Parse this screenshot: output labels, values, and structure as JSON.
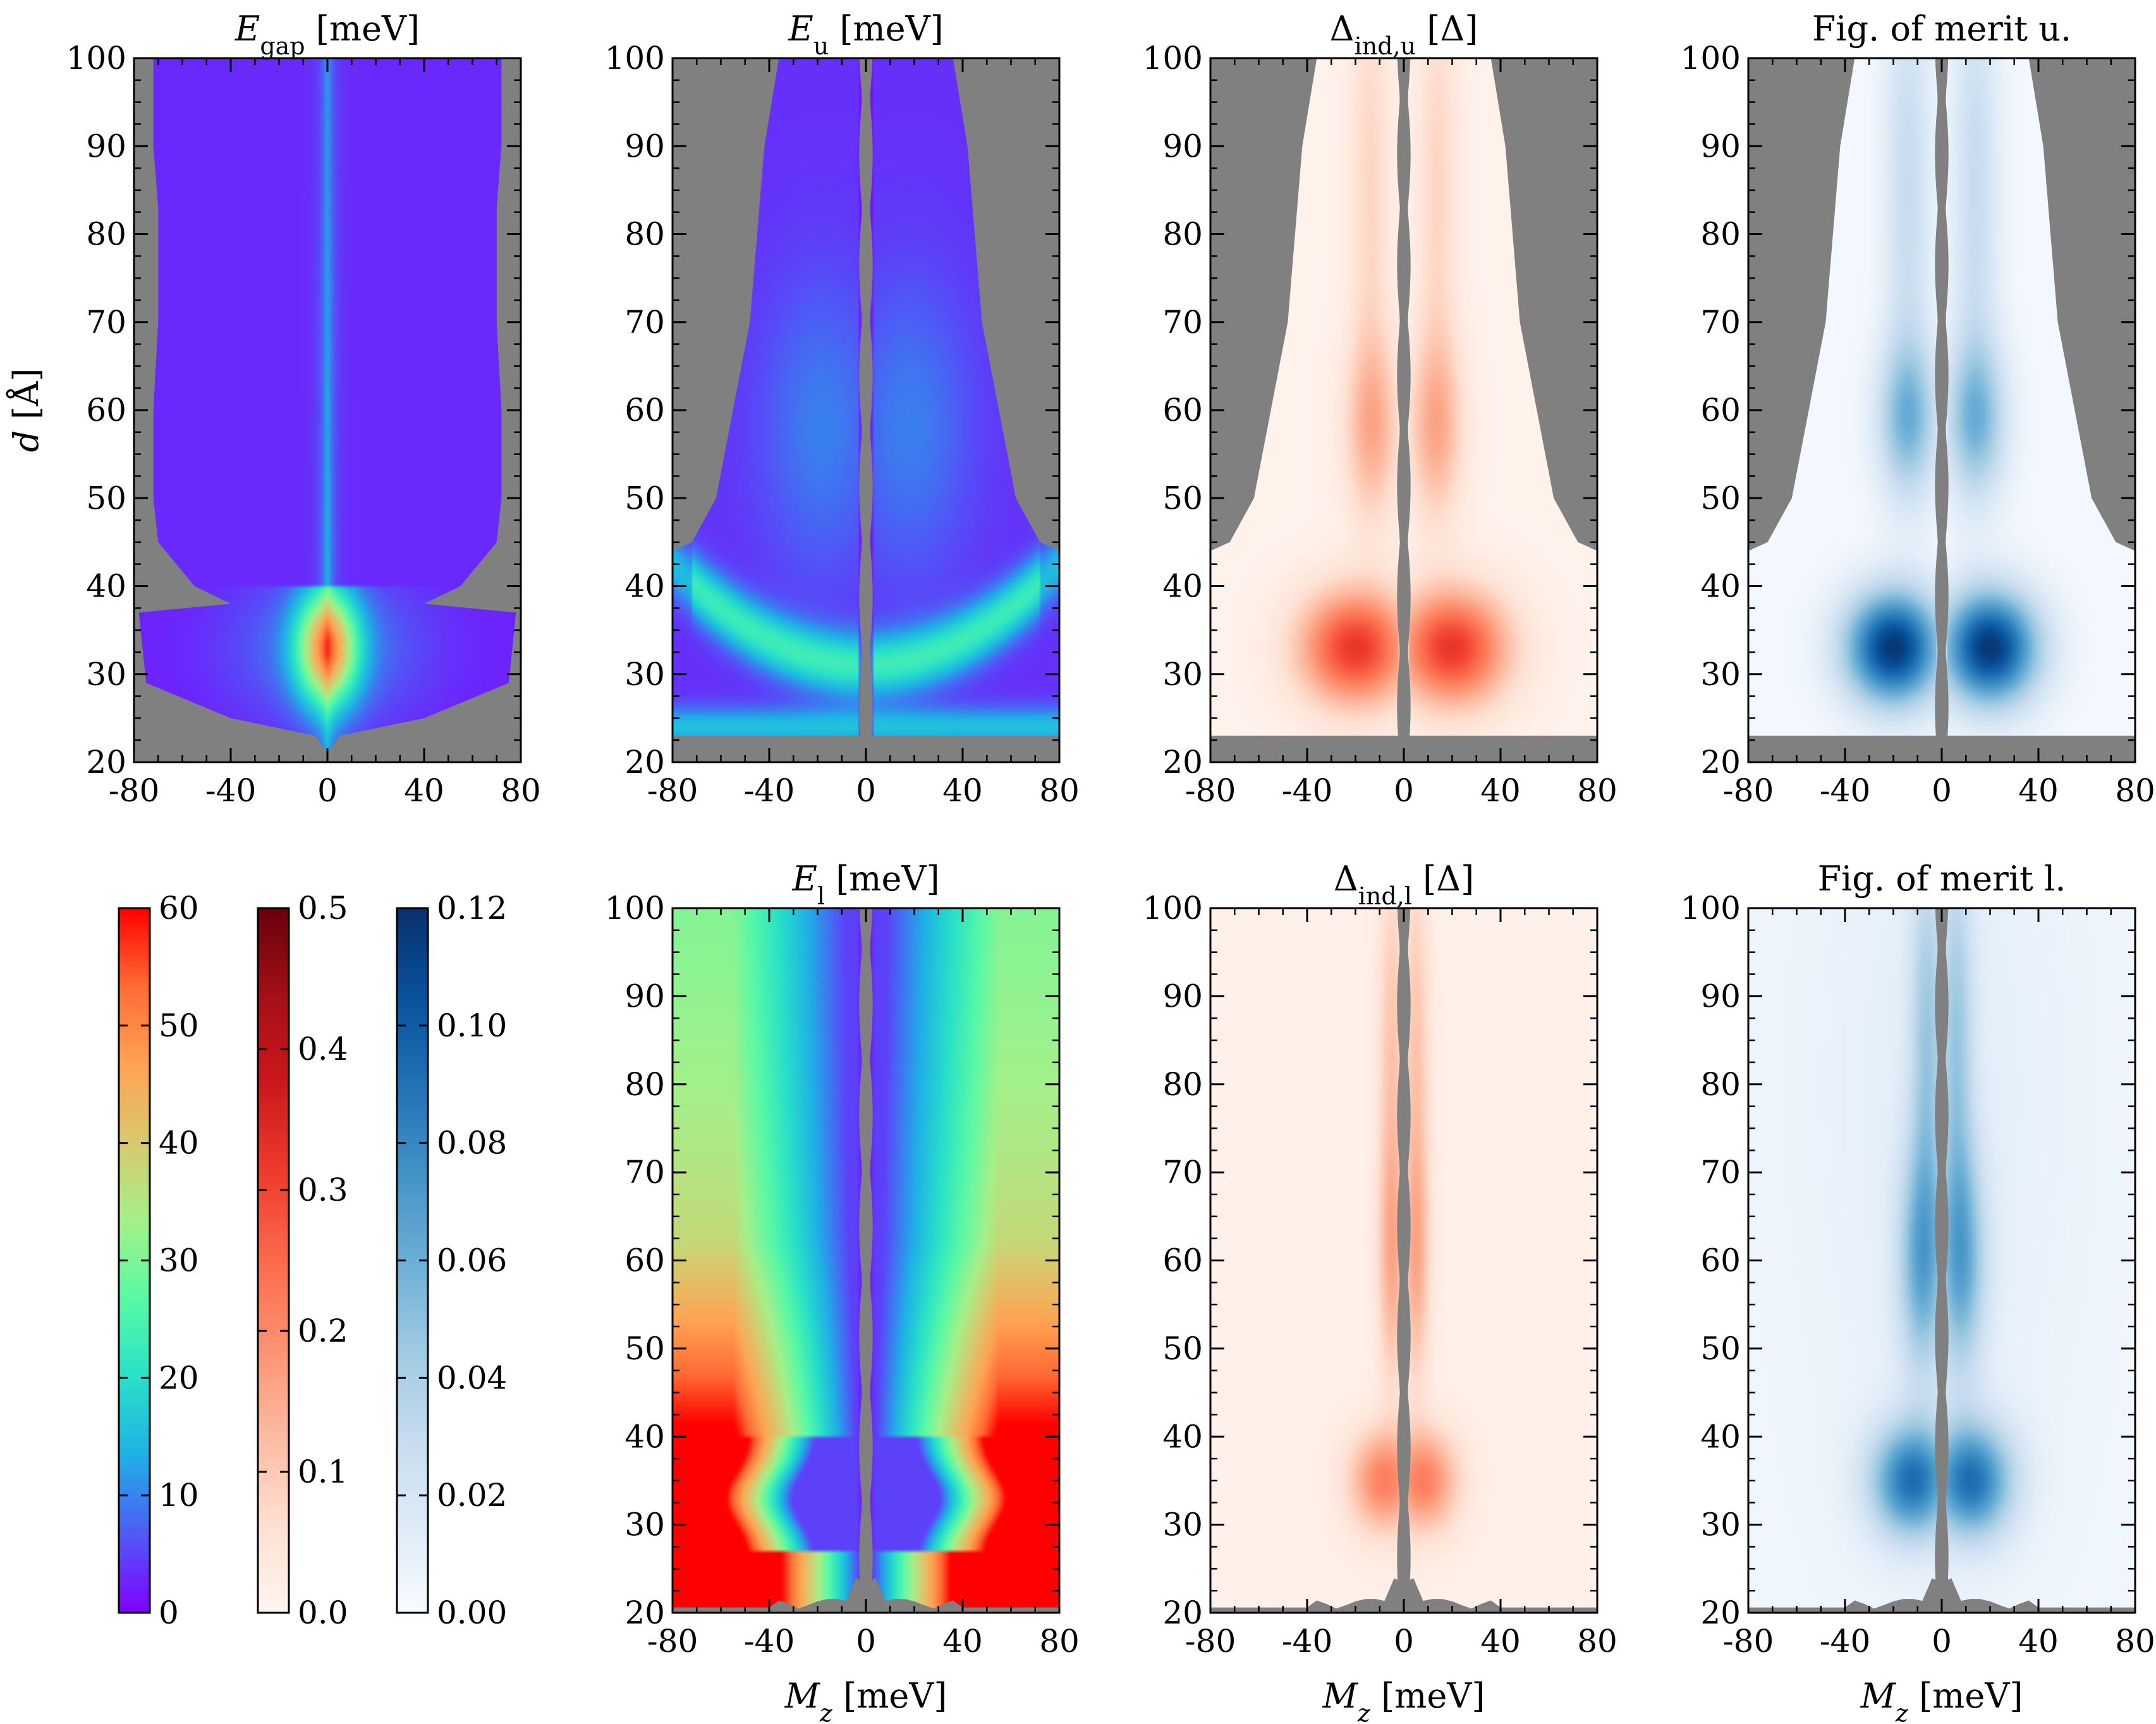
{
  "figure": {
    "background_color": "#ffffff",
    "masked_region_color": "#808080",
    "subtitle_note": ""
  },
  "chart_data": [
    {
      "type": "heatmap",
      "id": "egap",
      "title": "E_gap [meV]",
      "title_main": "E",
      "title_sub": "gap",
      "title_rest": " [meV]",
      "xlabel": "",
      "ylabel": "d [Å]",
      "ylabel_main": "d",
      "ylabel_rest": " [Å]",
      "xlim": [
        -80,
        80
      ],
      "ylim": [
        20,
        100
      ],
      "xticks": [
        -80,
        -40,
        0,
        40,
        80
      ],
      "yticks": [
        20,
        30,
        40,
        50,
        60,
        70,
        80,
        90,
        100
      ],
      "colormap": "rainbow",
      "color_range": [
        0,
        60
      ],
      "peak": {
        "x": 0,
        "y": 33,
        "value": 45
      },
      "valid_region": [
        [
          -72,
          100
        ],
        [
          -72,
          90
        ],
        [
          -70,
          83
        ],
        [
          -70,
          70
        ],
        [
          -72,
          60
        ],
        [
          -72,
          50
        ],
        [
          -70,
          45
        ],
        [
          -55,
          40
        ],
        [
          -40,
          38
        ],
        [
          -78,
          37
        ],
        [
          -75,
          29
        ],
        [
          -40,
          25
        ],
        [
          -5,
          23
        ],
        [
          0,
          21
        ],
        [
          5,
          23
        ],
        [
          40,
          25
        ],
        [
          75,
          29
        ],
        [
          78,
          37
        ],
        [
          40,
          38
        ],
        [
          55,
          40
        ],
        [
          70,
          45
        ],
        [
          72,
          50
        ],
        [
          72,
          60
        ],
        [
          70,
          70
        ],
        [
          70,
          83
        ],
        [
          72,
          90
        ],
        [
          72,
          100
        ]
      ]
    },
    {
      "type": "heatmap",
      "id": "eu",
      "title": "E_u [meV]",
      "title_main": "E",
      "title_sub": "u",
      "title_rest": " [meV]",
      "xlabel": "",
      "ylabel": "",
      "xlim": [
        -80,
        80
      ],
      "ylim": [
        20,
        100
      ],
      "xticks": [
        -80,
        -40,
        0,
        40,
        80
      ],
      "yticks": [
        20,
        30,
        40,
        50,
        60,
        70,
        80,
        90,
        100
      ],
      "colormap": "rainbow",
      "color_range": [
        0,
        60
      ],
      "ring": {
        "y_center": 33,
        "value": 25
      },
      "valid_region": [
        [
          -36,
          100
        ],
        [
          -42,
          90
        ],
        [
          -45,
          80
        ],
        [
          -48,
          70
        ],
        [
          -55,
          60
        ],
        [
          -62,
          50
        ],
        [
          -72,
          45
        ],
        [
          -80,
          44
        ],
        [
          -80,
          23
        ],
        [
          80,
          23
        ],
        [
          80,
          44
        ],
        [
          72,
          45
        ],
        [
          62,
          50
        ],
        [
          55,
          60
        ],
        [
          48,
          70
        ],
        [
          45,
          80
        ],
        [
          42,
          90
        ],
        [
          36,
          100
        ]
      ]
    },
    {
      "type": "heatmap",
      "id": "dind-u",
      "title": "Δ_ind,u [Δ]",
      "title_main": "Δ",
      "title_sub": "ind,u",
      "title_rest": " [Δ]",
      "xlabel": "",
      "ylabel": "",
      "xlim": [
        -80,
        80
      ],
      "ylim": [
        20,
        100
      ],
      "xticks": [
        -80,
        -40,
        0,
        40,
        80
      ],
      "yticks": [
        20,
        30,
        40,
        50,
        60,
        70,
        80,
        90,
        100
      ],
      "colormap": "reds",
      "color_range": [
        0,
        0.5
      ],
      "peak": {
        "x": 20,
        "y": 33,
        "value": 0.33
      },
      "valid_region": [
        [
          -36,
          100
        ],
        [
          -42,
          90
        ],
        [
          -45,
          80
        ],
        [
          -48,
          70
        ],
        [
          -55,
          60
        ],
        [
          -62,
          50
        ],
        [
          -72,
          45
        ],
        [
          -80,
          44
        ],
        [
          -80,
          23
        ],
        [
          80,
          23
        ],
        [
          80,
          44
        ],
        [
          72,
          45
        ],
        [
          62,
          50
        ],
        [
          55,
          60
        ],
        [
          48,
          70
        ],
        [
          45,
          80
        ],
        [
          42,
          90
        ],
        [
          36,
          100
        ]
      ]
    },
    {
      "type": "heatmap",
      "id": "fom-u",
      "title": "Fig. of merit u.",
      "xlabel": "",
      "ylabel": "",
      "xlim": [
        -80,
        80
      ],
      "ylim": [
        20,
        100
      ],
      "xticks": [
        -80,
        -40,
        0,
        40,
        80
      ],
      "yticks": [
        20,
        30,
        40,
        50,
        60,
        70,
        80,
        90,
        100
      ],
      "colormap": "blues",
      "color_range": [
        0,
        0.12
      ],
      "peak": {
        "x": 20,
        "y": 33,
        "value": 0.12
      },
      "valid_region": [
        [
          -36,
          100
        ],
        [
          -42,
          90
        ],
        [
          -45,
          80
        ],
        [
          -48,
          70
        ],
        [
          -55,
          60
        ],
        [
          -62,
          50
        ],
        [
          -72,
          45
        ],
        [
          -80,
          44
        ],
        [
          -80,
          23
        ],
        [
          80,
          23
        ],
        [
          80,
          44
        ],
        [
          72,
          45
        ],
        [
          62,
          50
        ],
        [
          55,
          60
        ],
        [
          48,
          70
        ],
        [
          45,
          80
        ],
        [
          42,
          90
        ],
        [
          36,
          100
        ]
      ]
    },
    {
      "type": "heatmap",
      "id": "el",
      "title": "E_l [meV]",
      "title_main": "E",
      "title_sub": "l",
      "title_rest": " [meV]",
      "xlabel": "M_z [meV]",
      "xlabel_main": "M",
      "xlabel_sub": "z",
      "xlabel_rest": " [meV]",
      "ylabel": "",
      "xlim": [
        -80,
        80
      ],
      "ylim": [
        20,
        100
      ],
      "xticks": [
        -80,
        -40,
        0,
        40,
        80
      ],
      "yticks": [
        20,
        30,
        40,
        50,
        60,
        70,
        80,
        90,
        100
      ],
      "colormap": "rainbow",
      "color_range": [
        0,
        60
      ],
      "max_value": 60
    },
    {
      "type": "heatmap",
      "id": "dind-l",
      "title": "Δ_ind,l [Δ]",
      "title_main": "Δ",
      "title_sub": "ind,l",
      "title_rest": " [Δ]",
      "xlabel": "M_z [meV]",
      "xlabel_main": "M",
      "xlabel_sub": "z",
      "xlabel_rest": " [meV]",
      "ylabel": "",
      "xlim": [
        -80,
        80
      ],
      "ylim": [
        20,
        100
      ],
      "xticks": [
        -80,
        -40,
        0,
        40,
        80
      ],
      "yticks": [
        20,
        30,
        40,
        50,
        60,
        70,
        80,
        90,
        100
      ],
      "colormap": "reds",
      "color_range": [
        0,
        0.5
      ],
      "peak": {
        "x": 8,
        "y": 35,
        "value": 0.22
      }
    },
    {
      "type": "heatmap",
      "id": "fom-l",
      "title": "Fig. of merit l.",
      "xlabel": "M_z [meV]",
      "xlabel_main": "M",
      "xlabel_sub": "z",
      "xlabel_rest": " [meV]",
      "ylabel": "",
      "xlim": [
        -80,
        80
      ],
      "ylim": [
        20,
        100
      ],
      "xticks": [
        -80,
        -40,
        0,
        40,
        80
      ],
      "yticks": [
        20,
        30,
        40,
        50,
        60,
        70,
        80,
        90,
        100
      ],
      "colormap": "blues",
      "color_range": [
        0,
        0.12
      ],
      "peak": {
        "x": 12,
        "y": 35,
        "value": 0.09
      }
    }
  ],
  "colorbars": [
    {
      "id": "cbar-rainbow",
      "colormap": "rainbow",
      "range": [
        0,
        60
      ],
      "ticks": [
        "0",
        "10",
        "20",
        "30",
        "40",
        "50",
        "60"
      ]
    },
    {
      "id": "cbar-reds",
      "colormap": "reds",
      "range": [
        0,
        0.5
      ],
      "ticks": [
        "0.0",
        "0.1",
        "0.2",
        "0.3",
        "0.4",
        "0.5"
      ]
    },
    {
      "id": "cbar-blues",
      "colormap": "blues",
      "range": [
        0,
        0.12
      ],
      "ticks": [
        "0.00",
        "0.02",
        "0.04",
        "0.06",
        "0.08",
        "0.10",
        "0.12"
      ]
    }
  ],
  "colors": {
    "rainbow": [
      "#8000ff",
      "#4f5af6",
      "#1fafe6",
      "#28e0c8",
      "#58f9a6",
      "#a4f089",
      "#d8c96e",
      "#ffa352",
      "#ff6b34",
      "#ff0000"
    ],
    "reds": [
      "#fff5f0",
      "#fee0d2",
      "#fcbba1",
      "#fc9272",
      "#fb6a4a",
      "#ef3b2c",
      "#cb181d",
      "#a50f15",
      "#67000d"
    ],
    "blues": [
      "#f7fbff",
      "#deebf7",
      "#c6dbef",
      "#9ecae1",
      "#6baed6",
      "#4292c6",
      "#2171b5",
      "#08519c",
      "#08306b"
    ]
  }
}
